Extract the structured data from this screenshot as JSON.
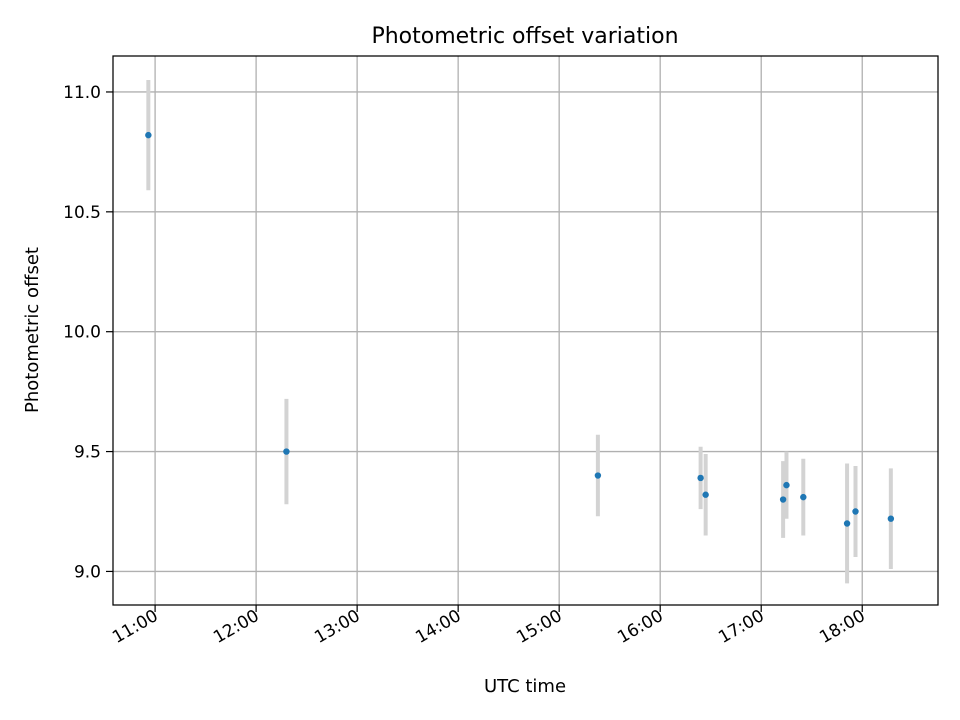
{
  "chart_data": {
    "type": "scatter",
    "title": "Photometric offset variation",
    "xlabel": "UTC time",
    "ylabel": "Photometric offset",
    "grid": true,
    "xlim": [
      "10:35",
      "18:45"
    ],
    "ylim": [
      8.86,
      11.15
    ],
    "xticks": [
      "11:00",
      "12:00",
      "13:00",
      "14:00",
      "15:00",
      "16:00",
      "17:00",
      "18:00"
    ],
    "yticks": [
      "9.0",
      "9.5",
      "10.0",
      "10.5",
      "11.0"
    ],
    "colors": {
      "point": "#1f77b4",
      "errorbar": "#d3d3d3",
      "grid": "#b0b0b0"
    },
    "points": [
      {
        "x": "10:56",
        "y": 10.82,
        "err": 0.23
      },
      {
        "x": "12:18",
        "y": 9.5,
        "err": 0.22
      },
      {
        "x": "15:23",
        "y": 9.4,
        "err": 0.17
      },
      {
        "x": "16:24",
        "y": 9.39,
        "err": 0.13
      },
      {
        "x": "16:27",
        "y": 9.32,
        "err": 0.17
      },
      {
        "x": "17:13",
        "y": 9.3,
        "err": 0.16
      },
      {
        "x": "17:15",
        "y": 9.36,
        "err": 0.14
      },
      {
        "x": "17:25",
        "y": 9.31,
        "err": 0.16
      },
      {
        "x": "17:51",
        "y": 9.2,
        "err": 0.25
      },
      {
        "x": "17:56",
        "y": 9.25,
        "err": 0.19
      },
      {
        "x": "18:17",
        "y": 9.22,
        "err": 0.21
      }
    ]
  }
}
